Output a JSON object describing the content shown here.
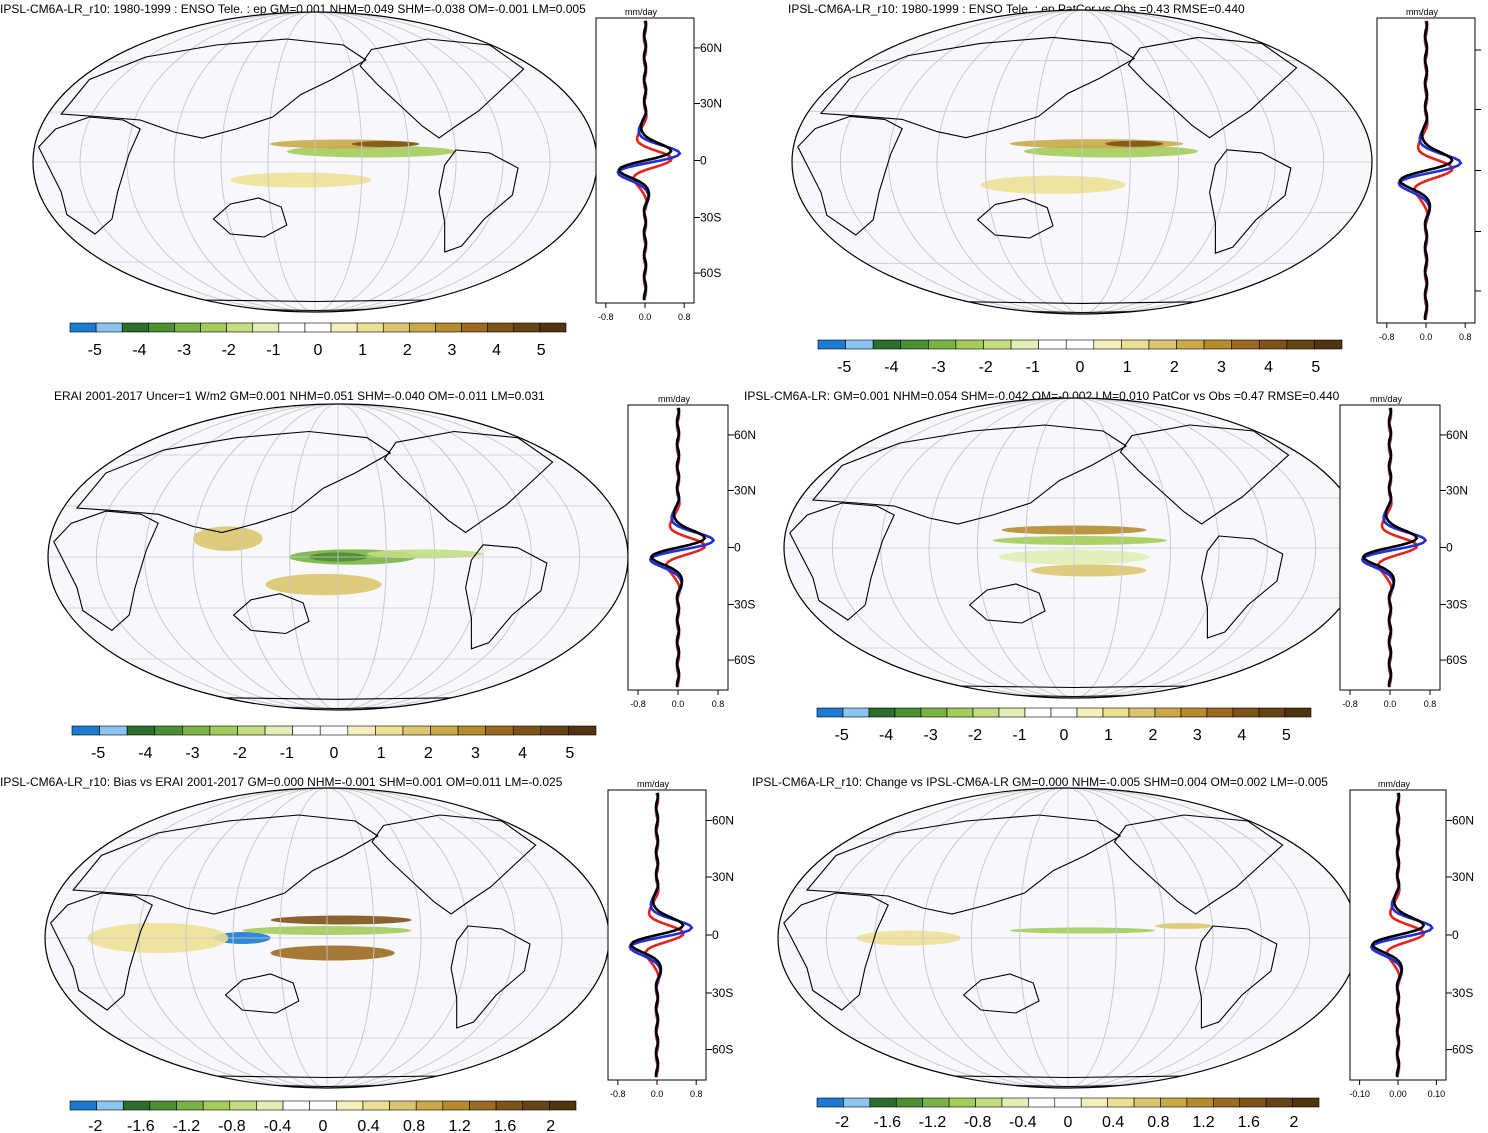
{
  "unit_label": "mm/day",
  "lat_ticks": [
    "60N",
    "30N",
    "0",
    "30S",
    "60S"
  ],
  "colors": {
    "blue_line": "#1f2fd6",
    "red_line": "#e8231a",
    "black_line": "#000000",
    "map_bg": "#f7f7fc",
    "grid": "#c8c8d0"
  },
  "panels": [
    {
      "id": "p1",
      "title": "IPSL-CM6A-LR_r10: 1980-1999 : ENSO Tele. : ep GM=0.001 NHM=0.049 SHM=-0.038 OM=-0.001 LM=0.005",
      "colorbar_labels": [
        "-5",
        "-4",
        "-3",
        "-2",
        "-1",
        "0",
        "1",
        "2",
        "3",
        "4",
        "5"
      ],
      "profile_ticks": [
        "-0.8",
        "0.0",
        "0.8"
      ],
      "show_lat_labels": true
    },
    {
      "id": "p2",
      "title": "IPSL-CM6A-LR_r10: 1980-1999 : ENSO Tele. : ep PatCor vs Obs =0.43 RMSE=0.440",
      "colorbar_labels": [
        "-5",
        "-4",
        "-3",
        "-2",
        "-1",
        "0",
        "1",
        "2",
        "3",
        "4",
        "5"
      ],
      "profile_ticks": [
        "-0.8",
        "0.0",
        "0.8"
      ],
      "show_lat_labels": false
    },
    {
      "id": "p3",
      "title": "ERAI 2001-2017 Uncer=1 W/m2 GM=0.001 NHM=0.051 SHM=-0.040 OM=-0.011 LM=0.031",
      "colorbar_labels": [
        "-5",
        "-4",
        "-3",
        "-2",
        "-1",
        "0",
        "1",
        "2",
        "3",
        "4",
        "5"
      ],
      "profile_ticks": [
        "-0.8",
        "0.0",
        "0.8"
      ],
      "show_lat_labels": true
    },
    {
      "id": "p4",
      "title": "IPSL-CM6A-LR: GM=0.001 NHM=0.054 SHM=-0.042 OM=-0.002 LM=0.010 PatCor vs Obs =0.47 RMSE=0.440",
      "colorbar_labels": [
        "-5",
        "-4",
        "-3",
        "-2",
        "-1",
        "0",
        "1",
        "2",
        "3",
        "4",
        "5"
      ],
      "profile_ticks": [
        "-0.8",
        "0.0",
        "0.8"
      ],
      "show_lat_labels": true
    },
    {
      "id": "p5",
      "title": "IPSL-CM6A-LR_r10: Bias vs ERAI 2001-2017 GM=0.000 NHM=-0.001 SHM=0.001 OM=0.011 LM=-0.025",
      "colorbar_labels": [
        "-2",
        "-1.6",
        "-1.2",
        "-0.8",
        "-0.4",
        "0",
        "0.4",
        "0.8",
        "1.2",
        "1.6",
        "2"
      ],
      "profile_ticks": [
        "-0.8",
        "0.0",
        "0.8"
      ],
      "show_lat_labels": true
    },
    {
      "id": "p6",
      "title": "IPSL-CM6A-LR_r10: Change vs IPSL-CM6A-LR GM=0.000 NHM=-0.005 SHM=0.004 OM=0.002 LM=-0.005",
      "colorbar_labels": [
        "-2",
        "-1.6",
        "-1.2",
        "-0.8",
        "-0.4",
        "0",
        "0.4",
        "0.8",
        "1.2",
        "1.6",
        "2"
      ],
      "profile_ticks": [
        "-0.10",
        "0.00",
        "0.10"
      ],
      "show_lat_labels": true
    }
  ],
  "chart_data": [
    {
      "type": "heatmap",
      "title": "IPSL-CM6A-LR_r10: 1980-1999 : ENSO Tele. : ep GM=0.001 NHM=0.049 SHM=-0.038 OM=-0.001 LM=0.005",
      "colorbar_range": [
        -5,
        5
      ],
      "profile_xlim": [
        -0.8,
        0.8
      ],
      "profile_unit": "mm/day",
      "lat_ticks": [
        "60N",
        "30N",
        "0",
        "30S",
        "60S"
      ]
    },
    {
      "type": "heatmap",
      "title": "IPSL-CM6A-LR_r10: 1980-1999 : ENSO Tele. : ep PatCor vs Obs =0.43 RMSE=0.440",
      "colorbar_range": [
        -5,
        5
      ],
      "profile_xlim": [
        -0.8,
        0.8
      ],
      "profile_unit": "mm/day"
    },
    {
      "type": "heatmap",
      "title": "ERAI 2001-2017 Uncer=1 W/m2 GM=0.001 NHM=0.051 SHM=-0.040 OM=-0.011 LM=0.031",
      "colorbar_range": [
        -5,
        5
      ],
      "profile_xlim": [
        -0.8,
        0.8
      ],
      "profile_unit": "mm/day"
    },
    {
      "type": "heatmap",
      "title": "IPSL-CM6A-LR: GM=0.001 NHM=0.054 SHM=-0.042 OM=-0.002 LM=0.010 PatCor vs Obs =0.47 RMSE=0.440",
      "colorbar_range": [
        -5,
        5
      ],
      "profile_xlim": [
        -0.8,
        0.8
      ],
      "profile_unit": "mm/day"
    },
    {
      "type": "heatmap",
      "title": "IPSL-CM6A-LR_r10: Bias vs ERAI 2001-2017 GM=0.000 NHM=-0.001 SHM=0.001 OM=0.011 LM=-0.025",
      "colorbar_range": [
        -2,
        2
      ],
      "profile_xlim": [
        -0.8,
        0.8
      ],
      "profile_unit": "mm/day"
    },
    {
      "type": "heatmap",
      "title": "IPSL-CM6A-LR_r10: Change vs IPSL-CM6A-LR GM=0.000 NHM=-0.005 SHM=0.004 OM=0.002 LM=-0.005",
      "colorbar_range": [
        -2,
        2
      ],
      "profile_xlim": [
        -0.1,
        0.1
      ],
      "profile_unit": "mm/day"
    }
  ]
}
